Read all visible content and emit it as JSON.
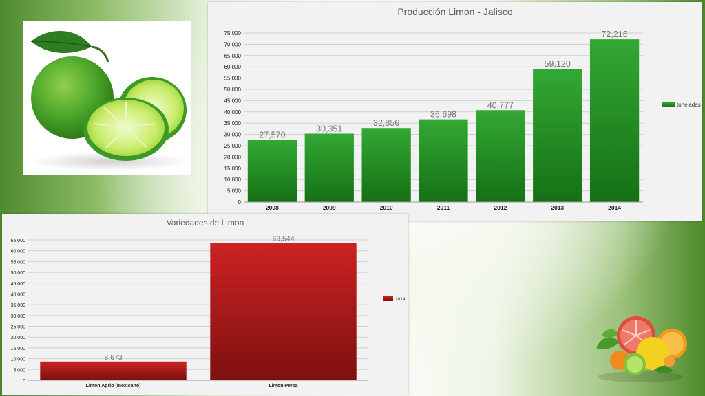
{
  "chart_data": [
    {
      "type": "bar",
      "title": "Producción Limon - Jalisco",
      "categories": [
        "2008",
        "2009",
        "2010",
        "2011",
        "2012",
        "2013",
        "2014"
      ],
      "series": [
        {
          "name": "toneladas",
          "values": [
            27570,
            30351,
            32856,
            36698,
            40777,
            59120,
            72216
          ]
        }
      ],
      "data_labels": [
        "27,570",
        "30,351",
        "32,856",
        "36,698",
        "40,777",
        "59,120",
        "72,216"
      ],
      "ylim": [
        0,
        75000
      ],
      "yticks": [
        "0",
        "5,000",
        "10,000",
        "15,000",
        "20,000",
        "25,000",
        "30,000",
        "35,000",
        "40,000",
        "45,000",
        "50,000",
        "55,000",
        "60,000",
        "65,000",
        "70,000",
        "75,000"
      ],
      "grid": true,
      "legend": "right",
      "colors": {
        "top": "#33a833",
        "bottom": "#157015"
      }
    },
    {
      "type": "bar",
      "title": "Variedades de Limon",
      "categories": [
        "Limon Agrio (mexicano)",
        "Limon Persa"
      ],
      "series": [
        {
          "name": "2014",
          "values": [
            8673,
            63544
          ]
        }
      ],
      "data_labels": [
        "8,673",
        "63,544"
      ],
      "ylim": [
        0,
        65000
      ],
      "yticks": [
        "0",
        "5,000",
        "10,000",
        "15,000",
        "20,000",
        "25,000",
        "30,000",
        "35,000",
        "40,000",
        "45,000",
        "50,000",
        "55,000",
        "60,000",
        "65,000"
      ],
      "grid": true,
      "legend": "right",
      "colors": {
        "top": "#cc2222",
        "bottom": "#7e1010"
      }
    }
  ],
  "images": {
    "lime_photo": "lime-fruit-image",
    "citrus_cluster": "citrus-fruits-image"
  }
}
